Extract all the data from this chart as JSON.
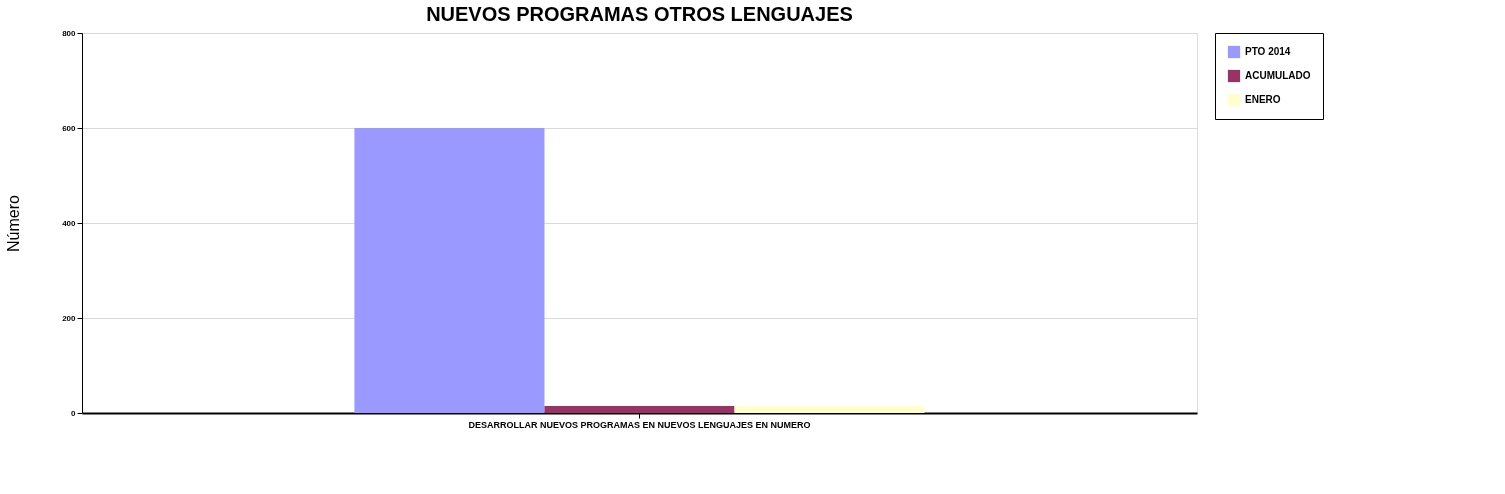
{
  "chart_data": {
    "type": "bar",
    "title": "NUEVOS PROGRAMAS OTROS LENGUAJES",
    "ylabel": "Número",
    "categories": [
      "DESARROLLAR NUEVOS PROGRAMAS EN NUEVOS LENGUAJES EN NUMERO"
    ],
    "series": [
      {
        "name": "PTO 2014",
        "color": "#9999ff",
        "values": [
          600
        ]
      },
      {
        "name": "ACUMULADO",
        "color": "#993366",
        "values": [
          15
        ]
      },
      {
        "name": "ENERO",
        "color": "#ffffcc",
        "values": [
          15
        ]
      }
    ],
    "ylim": [
      0,
      800
    ],
    "yticks": [
      0,
      200,
      400,
      600,
      800
    ],
    "grid": "y",
    "legend": "right"
  }
}
